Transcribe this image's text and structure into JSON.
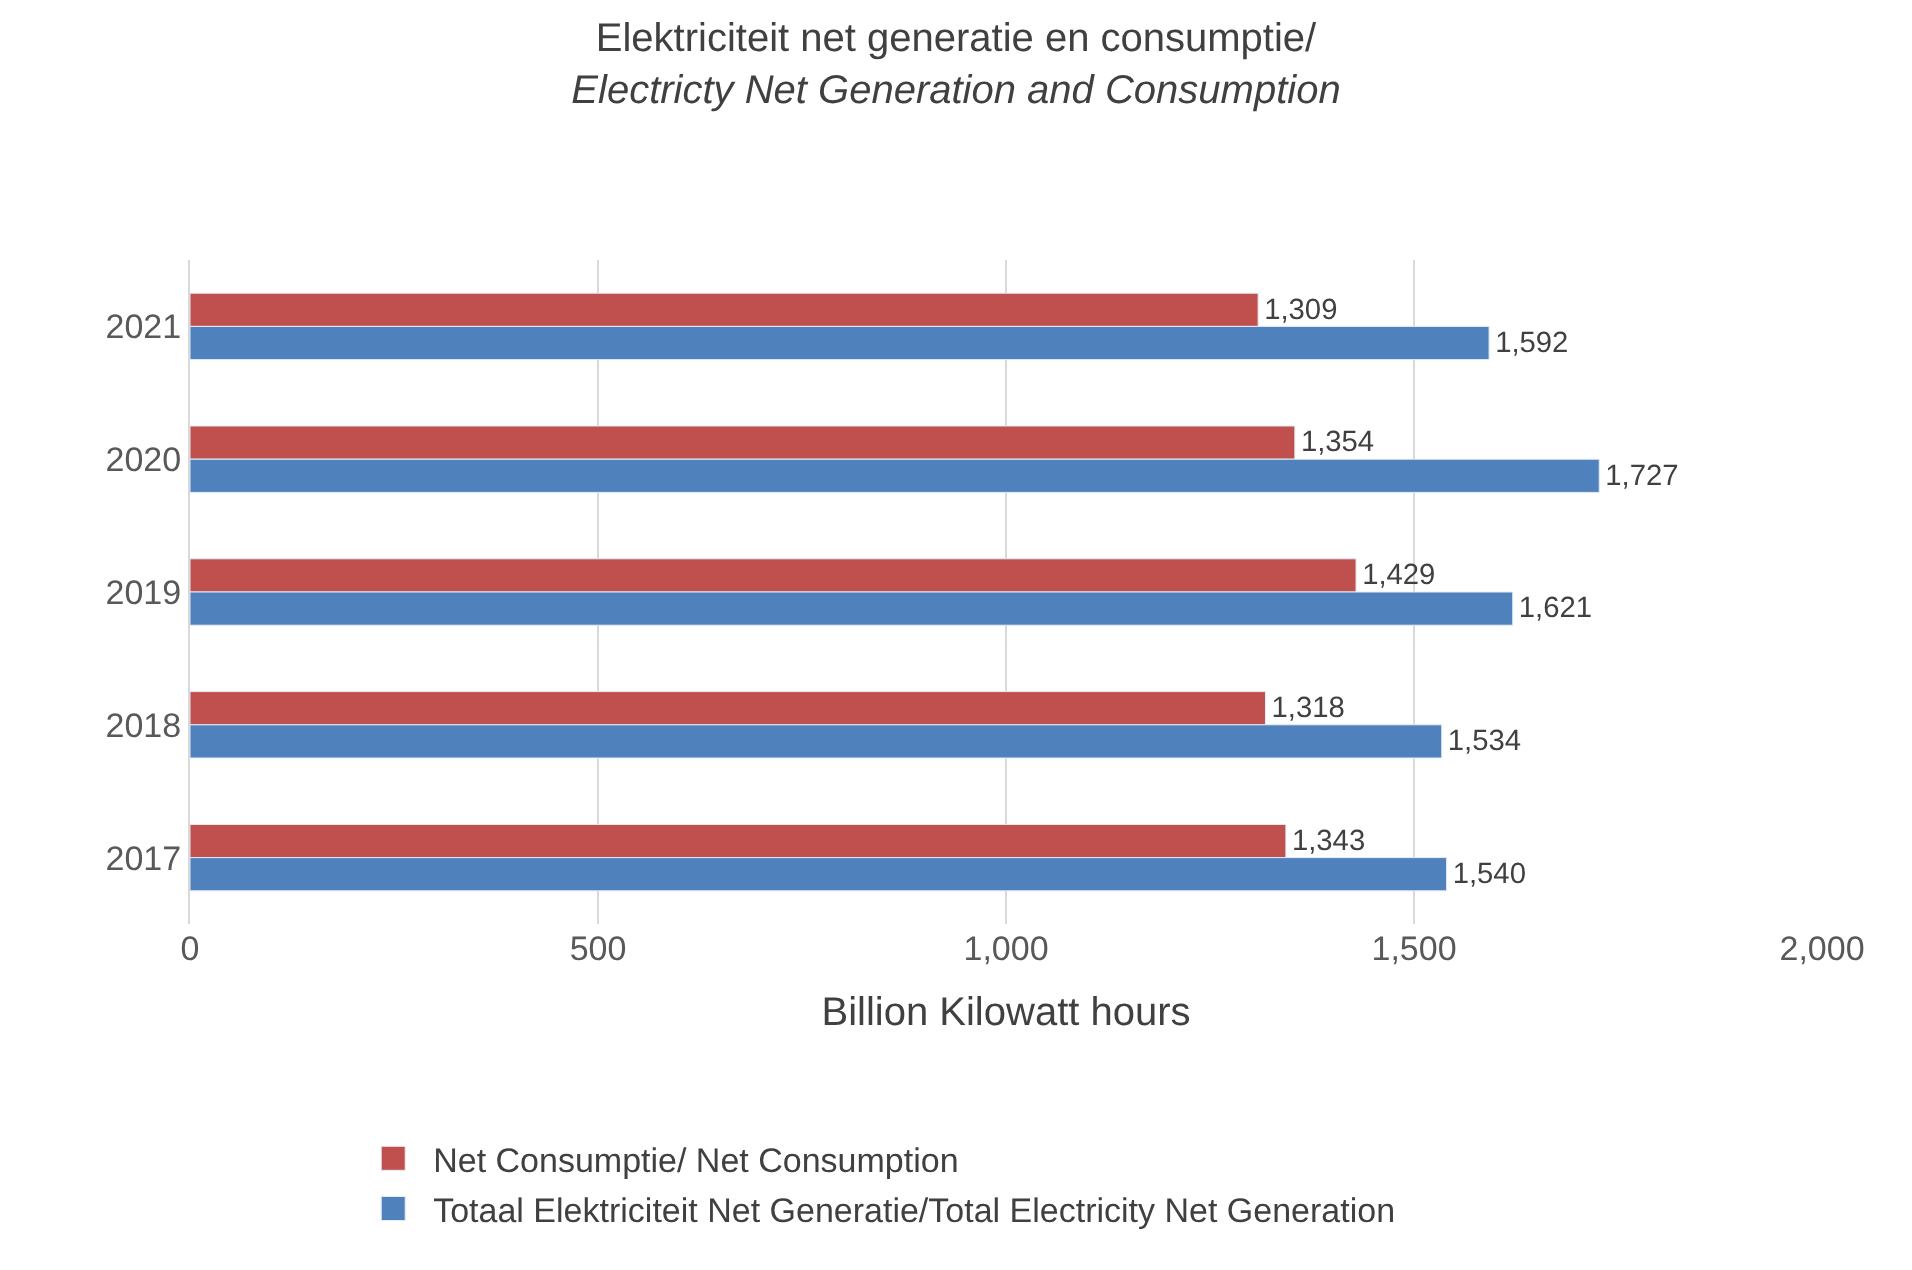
{
  "chart_data": {
    "type": "bar",
    "orientation": "horizontal",
    "title": "Elektriciteit net generatie en consumptie/",
    "subtitle": "Electricty Net Generation and Consumption",
    "xlabel": "Billion Kilowatt hours",
    "categories": [
      "2021",
      "2020",
      "2019",
      "2018",
      "2017"
    ],
    "series": [
      {
        "name": "Net Consumptie/ Net Consumption",
        "color": "#c0504d",
        "values": [
          1309,
          1354,
          1429,
          1318,
          1343
        ],
        "value_labels": [
          "1,309",
          "1,354",
          "1,429",
          "1,318",
          "1,343"
        ]
      },
      {
        "name": "Totaal Elektriciteit Net Generatie/Total Electricity Net Generation",
        "color": "#4f81bd",
        "values": [
          1592,
          1727,
          1621,
          1534,
          1540
        ],
        "value_labels": [
          "1,592",
          "1,727",
          "1,621",
          "1,534",
          "1,540"
        ]
      }
    ],
    "xlim": [
      0,
      2000
    ],
    "xticks": [
      0,
      500,
      {
        "value": 1000,
        "label": "1,000"
      },
      {
        "value": 1500,
        "label": "1,500"
      },
      {
        "value": 2000,
        "label": "2,000"
      }
    ],
    "grid": "x",
    "legend": "bottom"
  }
}
